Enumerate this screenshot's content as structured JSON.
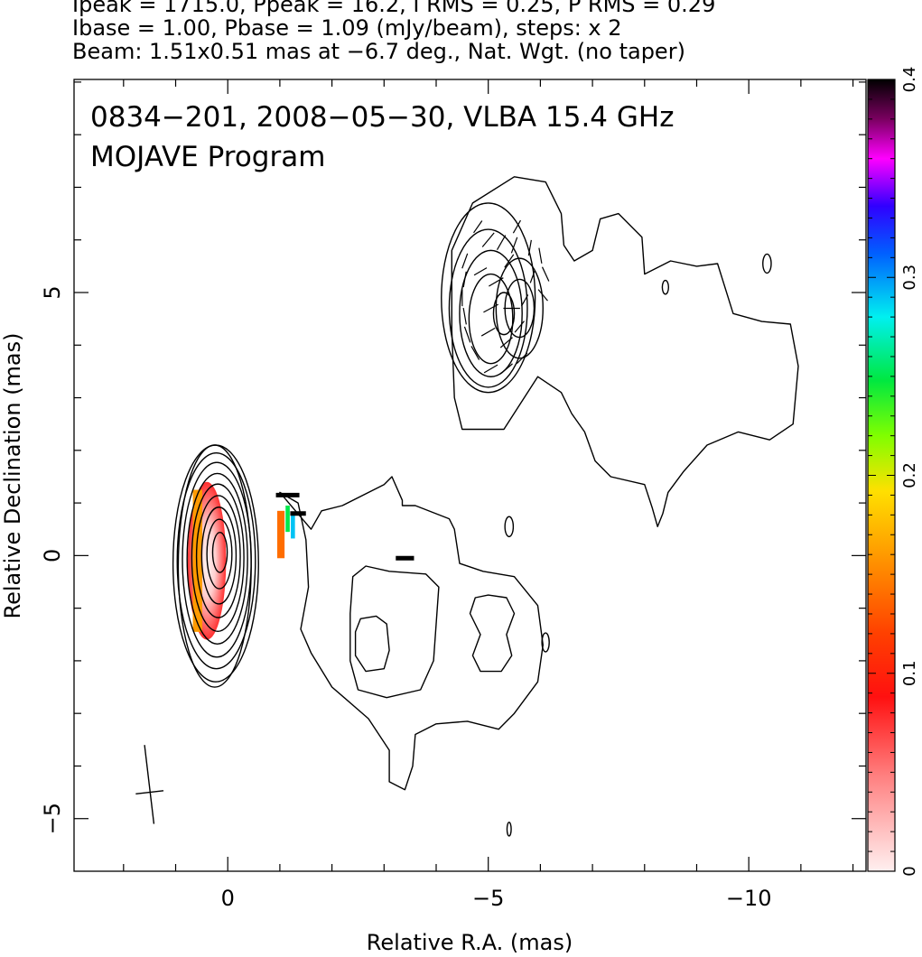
{
  "header": {
    "line1": "Ipeak = 1715.0, Ppeak = 16.2, I RMS = 0.25, P RMS = 0.29",
    "line2": "Ibase = 1.00, Pbase = 1.09 (mJy/beam), steps: x 2",
    "line3": "Beam: 1.51x0.51 mas at −6.7 deg., Nat. Wgt. (no taper)"
  },
  "chart_data": {
    "type": "contour",
    "title_line1": "0834−201, 2008−05−30, VLBA 15.4 GHz",
    "title_line2": "MOJAVE Program",
    "xlabel": "Relative R.A. (mas)",
    "ylabel": "Relative Declination (mas)",
    "xlim": [
      2.95,
      -12.25
    ],
    "ylim": [
      -6.0,
      9.05
    ],
    "x_inverted": true,
    "x_ticks": [
      {
        "v": 0,
        "label": "0"
      },
      {
        "v": -5,
        "label": "−5"
      },
      {
        "v": -10,
        "label": "−10"
      }
    ],
    "y_ticks": [
      {
        "v": -5,
        "label": "−5"
      },
      {
        "v": 0,
        "label": "0"
      },
      {
        "v": 5,
        "label": "5"
      }
    ],
    "colorbar": {
      "range": [
        0,
        0.4
      ],
      "ticks": [
        {
          "v": 0,
          "label": "0"
        },
        {
          "v": 0.1,
          "label": "0.1"
        },
        {
          "v": 0.2,
          "label": "0.2"
        },
        {
          "v": 0.3,
          "label": "0.3"
        },
        {
          "v": 0.4,
          "label": "0.4"
        }
      ]
    },
    "beam": {
      "major": 1.51,
      "minor": 0.51,
      "pa_deg": -6.7,
      "x": 1.5,
      "y": -4.5
    },
    "core_contours": [
      {
        "x": 0.25,
        "y": -0.2,
        "rx": 0.7,
        "ry": 2.3
      },
      {
        "x": 0.23,
        "y": -0.15,
        "rx": 0.82,
        "ry": 2.25
      },
      {
        "x": 0.22,
        "y": -0.1,
        "rx": 0.75,
        "ry": 2.05
      },
      {
        "x": 0.21,
        "y": -0.08,
        "rx": 0.66,
        "ry": 1.85
      },
      {
        "x": 0.2,
        "y": -0.06,
        "rx": 0.58,
        "ry": 1.62
      },
      {
        "x": 0.19,
        "y": -0.04,
        "rx": 0.5,
        "ry": 1.4
      },
      {
        "x": 0.18,
        "y": -0.02,
        "rx": 0.42,
        "ry": 1.16
      },
      {
        "x": 0.17,
        "y": 0.0,
        "rx": 0.33,
        "ry": 0.92
      },
      {
        "x": 0.16,
        "y": 0.03,
        "rx": 0.24,
        "ry": 0.66
      },
      {
        "x": 0.15,
        "y": 0.06,
        "rx": 0.14,
        "ry": 0.38
      }
    ],
    "knot_contours": [
      {
        "x": -5.0,
        "y": 4.9,
        "rx": 0.9,
        "ry": 1.8
      },
      {
        "x": -5.0,
        "y": 4.7,
        "rx": 0.75,
        "ry": 1.5
      },
      {
        "x": -5.05,
        "y": 4.6,
        "rx": 0.6,
        "ry": 1.2
      },
      {
        "x": -5.05,
        "y": 4.5,
        "rx": 0.42,
        "ry": 0.85
      },
      {
        "x": -5.6,
        "y": 4.7,
        "rx": 0.45,
        "ry": 0.95
      },
      {
        "x": -5.6,
        "y": 4.7,
        "rx": 0.28,
        "ry": 0.55
      },
      {
        "x": -5.3,
        "y": 4.6,
        "rx": 0.2,
        "ry": 0.4
      }
    ],
    "small_islands": [
      {
        "x": -10.35,
        "y": 5.55,
        "rx": 0.08,
        "ry": 0.18
      },
      {
        "x": -8.4,
        "y": 5.1,
        "rx": 0.06,
        "ry": 0.13
      },
      {
        "x": -5.4,
        "y": 0.55,
        "rx": 0.08,
        "ry": 0.19
      },
      {
        "x": -6.1,
        "y": -1.65,
        "rx": 0.07,
        "ry": 0.18
      },
      {
        "x": -5.4,
        "y": -5.2,
        "rx": 0.04,
        "ry": 0.13
      }
    ],
    "outer_contour": [
      [
        -1.0,
        1.2
      ],
      [
        -1.35,
        1.0
      ],
      [
        -1.5,
        0.3
      ],
      [
        -1.55,
        -0.6
      ],
      [
        -1.4,
        -1.4
      ],
      [
        -1.6,
        -1.85
      ],
      [
        -2.0,
        -2.5
      ],
      [
        -2.7,
        -3.1
      ],
      [
        -3.1,
        -3.7
      ],
      [
        -3.1,
        -4.3
      ],
      [
        -3.4,
        -4.45
      ],
      [
        -3.55,
        -4.0
      ],
      [
        -3.6,
        -3.4
      ],
      [
        -4.0,
        -3.2
      ],
      [
        -4.6,
        -3.15
      ],
      [
        -5.2,
        -3.3
      ],
      [
        -5.5,
        -3.0
      ],
      [
        -5.95,
        -2.4
      ],
      [
        -6.05,
        -1.7
      ],
      [
        -5.95,
        -0.95
      ],
      [
        -5.5,
        -0.4
      ],
      [
        -4.9,
        -0.3
      ],
      [
        -4.45,
        -0.15
      ],
      [
        -4.35,
        0.5
      ],
      [
        -4.25,
        0.7
      ],
      [
        -3.6,
        0.95
      ],
      [
        -3.35,
        0.95
      ],
      [
        -3.35,
        1.05
      ],
      [
        -3.15,
        1.5
      ],
      [
        -3.0,
        1.35
      ],
      [
        -2.2,
        0.95
      ],
      [
        -1.8,
        0.85
      ],
      [
        -1.6,
        0.5
      ],
      [
        -1.0,
        1.2
      ]
    ],
    "second_contour": [
      [
        -2.4,
        -0.4
      ],
      [
        -2.65,
        -0.2
      ],
      [
        -3.1,
        -0.3
      ],
      [
        -3.8,
        -0.35
      ],
      [
        -4.05,
        -0.6
      ],
      [
        -4.0,
        -1.3
      ],
      [
        -3.95,
        -2.0
      ],
      [
        -3.7,
        -2.55
      ],
      [
        -3.05,
        -2.7
      ],
      [
        -2.5,
        -2.55
      ],
      [
        -2.35,
        -2.0
      ],
      [
        -2.35,
        -1.1
      ],
      [
        -2.4,
        -0.4
      ]
    ],
    "third_contour": [
      [
        -2.55,
        -1.2
      ],
      [
        -2.85,
        -1.15
      ],
      [
        -3.05,
        -1.3
      ],
      [
        -3.1,
        -1.8
      ],
      [
        -3.0,
        -2.15
      ],
      [
        -2.65,
        -2.2
      ],
      [
        -2.45,
        -1.9
      ],
      [
        -2.45,
        -1.45
      ],
      [
        -2.55,
        -1.2
      ]
    ],
    "island_right": [
      [
        -4.75,
        -0.8
      ],
      [
        -5.0,
        -0.75
      ],
      [
        -5.35,
        -0.8
      ],
      [
        -5.5,
        -1.1
      ],
      [
        -5.35,
        -1.5
      ],
      [
        -5.45,
        -1.9
      ],
      [
        -5.25,
        -2.2
      ],
      [
        -4.85,
        -2.2
      ],
      [
        -4.7,
        -1.9
      ],
      [
        -4.85,
        -1.5
      ],
      [
        -4.65,
        -1.1
      ],
      [
        -4.75,
        -0.8
      ]
    ],
    "jet_outer_contour": [
      [
        -4.3,
        4.3
      ],
      [
        -4.3,
        5.8
      ],
      [
        -4.7,
        6.7
      ],
      [
        -5.5,
        7.2
      ],
      [
        -6.1,
        7.1
      ],
      [
        -6.4,
        6.5
      ],
      [
        -6.45,
        5.9
      ],
      [
        -6.65,
        5.6
      ],
      [
        -7.0,
        5.8
      ],
      [
        -7.15,
        6.4
      ],
      [
        -7.5,
        6.5
      ],
      [
        -7.95,
        6.05
      ],
      [
        -8.0,
        5.35
      ],
      [
        -8.5,
        5.6
      ],
      [
        -9.0,
        5.5
      ],
      [
        -9.4,
        5.55
      ],
      [
        -9.7,
        4.6
      ],
      [
        -10.25,
        4.45
      ],
      [
        -10.8,
        4.4
      ],
      [
        -10.95,
        3.6
      ],
      [
        -10.85,
        2.5
      ],
      [
        -10.4,
        2.2
      ],
      [
        -9.8,
        2.35
      ],
      [
        -9.2,
        2.1
      ],
      [
        -8.75,
        1.6
      ],
      [
        -8.45,
        1.2
      ],
      [
        -8.35,
        0.8
      ],
      [
        -8.25,
        0.55
      ],
      [
        -8.15,
        0.9
      ],
      [
        -8.0,
        1.35
      ],
      [
        -7.35,
        1.5
      ],
      [
        -7.05,
        1.8
      ],
      [
        -6.85,
        2.35
      ],
      [
        -6.6,
        2.7
      ],
      [
        -6.4,
        3.1
      ],
      [
        -5.95,
        3.4
      ],
      [
        -5.3,
        2.4
      ],
      [
        -4.5,
        2.4
      ],
      [
        -4.35,
        3.0
      ],
      [
        -4.3,
        4.3
      ]
    ],
    "evpa_vectors": [
      {
        "x": -1.15,
        "y": 1.15,
        "len": 0.45,
        "ang": 90
      },
      {
        "x": -1.35,
        "y": 0.8,
        "len": 0.3,
        "ang": 90
      },
      {
        "x": -3.4,
        "y": -0.05,
        "len": 0.35,
        "ang": 90
      },
      {
        "x": -5.0,
        "y": 6.0,
        "len": 0.35,
        "ang": 40
      },
      {
        "x": -5.25,
        "y": 5.95,
        "len": 0.32,
        "ang": 30
      },
      {
        "x": -5.5,
        "y": 5.9,
        "len": 0.32,
        "ang": 20
      },
      {
        "x": -5.8,
        "y": 5.85,
        "len": 0.3,
        "ang": 10
      },
      {
        "x": -6.0,
        "y": 5.7,
        "len": 0.3,
        "ang": -10
      },
      {
        "x": -6.1,
        "y": 5.35,
        "len": 0.3,
        "ang": -25
      },
      {
        "x": -6.05,
        "y": 4.95,
        "len": 0.28,
        "ang": -40
      },
      {
        "x": -4.55,
        "y": 5.6,
        "len": 0.3,
        "ang": 20
      },
      {
        "x": -4.55,
        "y": 5.25,
        "len": 0.3,
        "ang": 10
      },
      {
        "x": -4.5,
        "y": 4.9,
        "len": 0.32,
        "ang": 0
      },
      {
        "x": -4.55,
        "y": 4.55,
        "len": 0.32,
        "ang": -10
      },
      {
        "x": -4.6,
        "y": 4.2,
        "len": 0.32,
        "ang": -20
      },
      {
        "x": -4.75,
        "y": 3.85,
        "len": 0.3,
        "ang": -30
      },
      {
        "x": -5.05,
        "y": 3.55,
        "len": 0.3,
        "ang": 60
      },
      {
        "x": -5.35,
        "y": 3.55,
        "len": 0.3,
        "ang": 50
      },
      {
        "x": -5.65,
        "y": 3.75,
        "len": 0.28,
        "ang": 45
      },
      {
        "x": -4.85,
        "y": 5.4,
        "len": 0.28,
        "ang": 60
      },
      {
        "x": -5.15,
        "y": 5.2,
        "len": 0.32,
        "ang": 60
      },
      {
        "x": -5.05,
        "y": 4.7,
        "len": 0.32,
        "ang": 62
      },
      {
        "x": -5.0,
        "y": 4.25,
        "len": 0.3,
        "ang": 60
      },
      {
        "x": -5.35,
        "y": 4.05,
        "len": 0.3,
        "ang": 50
      },
      {
        "x": -5.6,
        "y": 4.35,
        "len": 0.28,
        "ang": 40
      },
      {
        "x": -5.7,
        "y": 4.85,
        "len": 0.25,
        "ang": 30
      },
      {
        "x": -5.85,
        "y": 5.3,
        "len": 0.25,
        "ang": 20
      },
      {
        "x": -5.4,
        "y": 5.6,
        "len": 0.3,
        "ang": 35
      },
      {
        "x": -4.8,
        "y": 6.25,
        "len": 0.28,
        "ang": 35
      },
      {
        "x": -5.55,
        "y": 6.25,
        "len": 0.28,
        "ang": 30
      },
      {
        "x": -5.45,
        "y": 4.7,
        "len": 0.32,
        "ang": 90
      }
    ],
    "fracpol_patches": [
      {
        "x": 0.4,
        "y": -0.1,
        "w": 0.7,
        "h": 3.0,
        "value": 0.05
      },
      {
        "x": 0.58,
        "y": -0.1,
        "w": 0.18,
        "h": 2.7,
        "value": 0.16
      },
      {
        "x": -1.02,
        "y": 0.4,
        "w": 0.14,
        "h": 0.9,
        "value": 0.14
      },
      {
        "x": -1.15,
        "y": 0.7,
        "w": 0.08,
        "h": 0.5,
        "value": 0.25
      },
      {
        "x": -1.25,
        "y": 0.55,
        "w": 0.08,
        "h": 0.45,
        "value": 0.29
      }
    ]
  }
}
